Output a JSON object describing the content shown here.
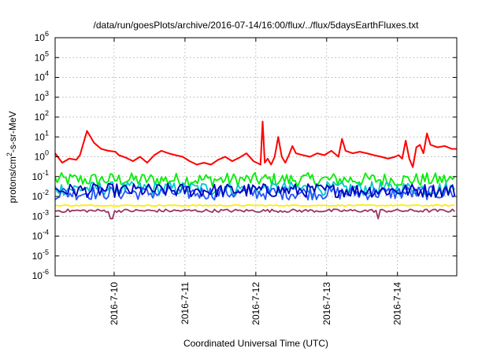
{
  "chart_data": {
    "type": "line",
    "title": "/data/run/goesPlots/archive/2016-07-14/16:00/flux/../flux/5daysEarthFluxes.txt",
    "xlabel": "Coordinated Universal Time (UTC)",
    "ylabel": "protons/cm²-s-sr-MeV",
    "ylabel_parts": {
      "pre": "protons/cm",
      "sup": "2",
      "post": "-s-sr-MeV"
    },
    "y_scale": "log",
    "y_ticks": [
      {
        "base": "10",
        "exp": "-6"
      },
      {
        "base": "10",
        "exp": "-5"
      },
      {
        "base": "10",
        "exp": "-4"
      },
      {
        "base": "10",
        "exp": "-3"
      },
      {
        "base": "10",
        "exp": "-2"
      },
      {
        "base": "10",
        "exp": "-1"
      },
      {
        "base": "10",
        "exp": "0"
      },
      {
        "base": "10",
        "exp": "1"
      },
      {
        "base": "10",
        "exp": "2"
      },
      {
        "base": "10",
        "exp": "3"
      },
      {
        "base": "10",
        "exp": "4"
      },
      {
        "base": "10",
        "exp": "5"
      },
      {
        "base": "10",
        "exp": "6"
      }
    ],
    "ylim": [
      1e-06,
      1000000.0
    ],
    "x_range_days": [
      "2016-07-09 04:00",
      "2016-07-14 16:00"
    ],
    "x_ticks": [
      "2016-7-10",
      "2016-7-11",
      "2016-7-12",
      "2016-7-13",
      "2016-7-14"
    ],
    "grid": true,
    "series": [
      {
        "color": "#ff0000",
        "points": [
          [
            0,
            1.5
          ],
          [
            0.1,
            0.5
          ],
          [
            0.2,
            0.8
          ],
          [
            0.3,
            0.7
          ],
          [
            0.35,
            1.2
          ],
          [
            0.45,
            20
          ],
          [
            0.55,
            5
          ],
          [
            0.65,
            2.5
          ],
          [
            0.75,
            2.0
          ],
          [
            0.85,
            1.8
          ],
          [
            0.9,
            1.2
          ],
          [
            1.0,
            0.9
          ],
          [
            1.1,
            0.6
          ],
          [
            1.2,
            1.0
          ],
          [
            1.3,
            0.5
          ],
          [
            1.4,
            1.2
          ],
          [
            1.5,
            2.0
          ],
          [
            1.6,
            1.5
          ],
          [
            1.7,
            1.2
          ],
          [
            1.8,
            1.0
          ],
          [
            1.9,
            0.6
          ],
          [
            2.0,
            0.4
          ],
          [
            2.1,
            0.5
          ],
          [
            2.2,
            0.4
          ],
          [
            2.3,
            0.7
          ],
          [
            2.4,
            1.0
          ],
          [
            2.5,
            0.6
          ],
          [
            2.6,
            0.9
          ],
          [
            2.7,
            1.5
          ],
          [
            2.8,
            0.6
          ],
          [
            2.9,
            0.4
          ],
          [
            2.93,
            60
          ],
          [
            2.96,
            0.5
          ],
          [
            3.0,
            0.8
          ],
          [
            3.05,
            0.4
          ],
          [
            3.1,
            1.0
          ],
          [
            3.15,
            10
          ],
          [
            3.2,
            1.0
          ],
          [
            3.25,
            0.5
          ],
          [
            3.3,
            1.2
          ],
          [
            3.35,
            3.5
          ],
          [
            3.4,
            1.5
          ],
          [
            3.5,
            1.2
          ],
          [
            3.6,
            1.0
          ],
          [
            3.7,
            1.5
          ],
          [
            3.8,
            1.2
          ],
          [
            3.9,
            2.0
          ],
          [
            4.0,
            1.0
          ],
          [
            4.05,
            8
          ],
          [
            4.1,
            2.0
          ],
          [
            4.2,
            1.5
          ],
          [
            4.3,
            1.8
          ],
          [
            4.4,
            1.5
          ],
          [
            4.5,
            1.2
          ],
          [
            4.6,
            1.0
          ],
          [
            4.7,
            0.8
          ],
          [
            4.8,
            1.0
          ],
          [
            4.85,
            1.2
          ],
          [
            4.9,
            0.8
          ],
          [
            4.95,
            6.5
          ],
          [
            5.0,
            0.8
          ],
          [
            5.05,
            0.3
          ],
          [
            5.1,
            3.0
          ],
          [
            5.15,
            4.0
          ],
          [
            5.2,
            1.5
          ],
          [
            5.25,
            15
          ],
          [
            5.3,
            4.0
          ],
          [
            5.4,
            3.0
          ],
          [
            5.5,
            3.5
          ],
          [
            5.6,
            2.5
          ],
          [
            5.67,
            2.5
          ]
        ]
      },
      {
        "color": "#00ee00",
        "points": [
          [
            0,
            0.07
          ],
          [
            5.67,
            0.07
          ]
        ]
      },
      {
        "color": "#00c8c8",
        "points": [
          [
            0,
            0.025
          ],
          [
            5.67,
            0.025
          ]
        ]
      },
      {
        "color": "#2255ff",
        "points": [
          [
            0,
            0.015
          ],
          [
            5.67,
            0.015
          ]
        ]
      },
      {
        "color": "#0000bb",
        "points": [
          [
            0,
            0.02
          ],
          [
            5.67,
            0.02
          ]
        ]
      },
      {
        "color": "#ffee00",
        "points": [
          [
            0,
            0.0035
          ],
          [
            5.67,
            0.0035
          ]
        ]
      },
      {
        "color": "#993366",
        "points": [
          [
            0,
            0.0019
          ],
          [
            5.67,
            0.0019
          ]
        ]
      }
    ]
  }
}
